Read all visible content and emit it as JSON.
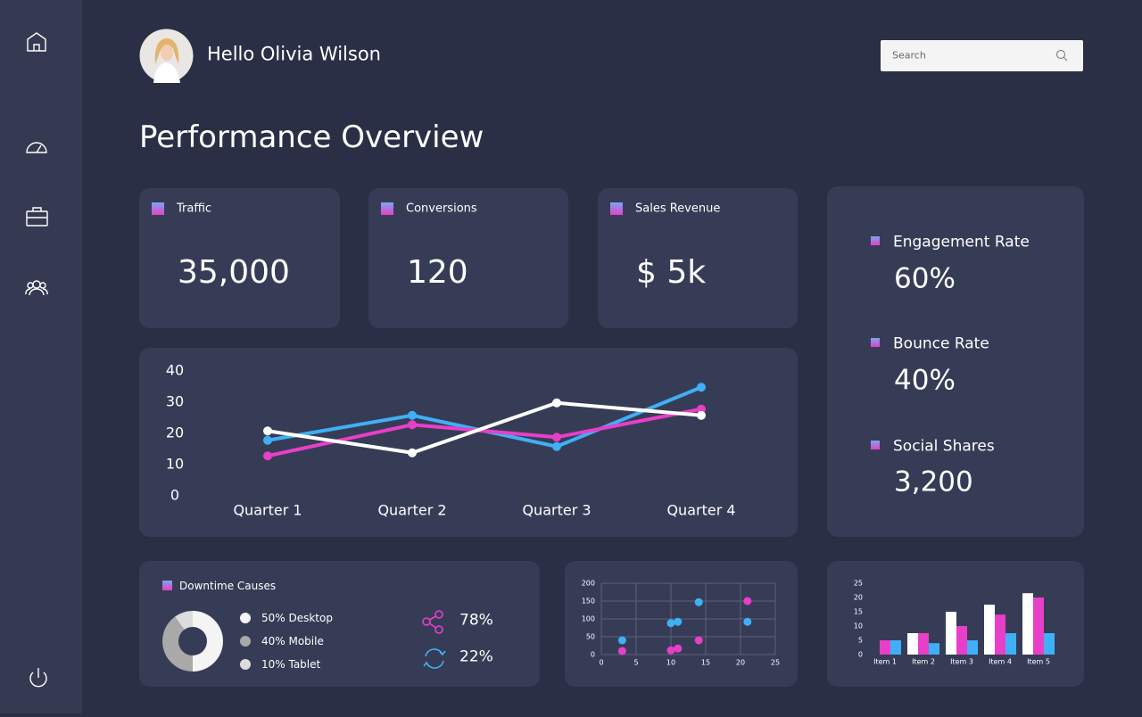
{
  "header": {
    "greeting": "Hello Olivia Wilson",
    "search_placeholder": "Search"
  },
  "title": "Performance Overview",
  "kpis": [
    {
      "label": "Traffic",
      "value": "35,000"
    },
    {
      "label": "Conversions",
      "value": "120"
    },
    {
      "label": "Sales Revenue",
      "value": "$ 5k"
    }
  ],
  "side_stats": [
    {
      "label": "Engagement Rate",
      "value": "60%"
    },
    {
      "label": "Bounce Rate",
      "value": "40%"
    },
    {
      "label": "Social Shares",
      "value": "3,200"
    }
  ],
  "share_stats": [
    "78%",
    "22%"
  ],
  "chart_data": [
    {
      "type": "line",
      "categories": [
        "Quarter 1",
        "Quarter 2",
        "Quarter 3",
        "Quarter 4"
      ],
      "series": [
        {
          "color": "#3fb0f5",
          "values": [
            17.5,
            25.5,
            15.5,
            34.5
          ]
        },
        {
          "color": "#e83fc8",
          "values": [
            12.5,
            22.5,
            18.5,
            27.5
          ]
        },
        {
          "color": "#ffffff",
          "values": [
            20.5,
            13.5,
            29.5,
            25.5
          ]
        }
      ],
      "ylim": [
        0,
        40
      ],
      "yticks": [
        0,
        10,
        20,
        30,
        40
      ],
      "grid": false
    },
    {
      "type": "pie",
      "title": "Downtime Causes",
      "values": [
        50,
        40,
        10
      ],
      "value_labels": [
        "50% Desktop",
        "40% Mobile",
        "10% Tablet"
      ],
      "colors": [
        "#f4f4f4",
        "#a9a9a9",
        "#dcdcdc"
      ]
    },
    {
      "type": "scatter",
      "series": [
        {
          "color": "#3fb0f5",
          "x": [
            3,
            10,
            11,
            14,
            21
          ],
          "values": [
            40,
            88,
            92,
            147,
            92
          ]
        },
        {
          "color": "#e83fc8",
          "x": [
            3,
            10,
            11,
            14,
            21
          ],
          "values": [
            10,
            12,
            17,
            40,
            150
          ]
        }
      ],
      "xlim": [
        0,
        25
      ],
      "xticks": [
        0,
        5,
        10,
        15,
        20,
        25
      ],
      "ylim": [
        0,
        200
      ],
      "yticks": [
        0,
        50,
        100,
        150,
        200
      ],
      "grid": true
    },
    {
      "type": "bar",
      "categories": [
        "Item 1",
        "Item 2",
        "Item 3",
        "Item 4",
        "Item 5"
      ],
      "series": [
        {
          "color": "#ffffff",
          "values": [
            0,
            7.5,
            15,
            17.5,
            21.5
          ]
        },
        {
          "color": "#e83fc8",
          "values": [
            5,
            7.5,
            10,
            14,
            20
          ]
        },
        {
          "color": "#3fb0f5",
          "values": [
            5,
            4,
            5,
            7.5,
            7.5
          ]
        }
      ],
      "ylim": [
        0,
        25
      ],
      "yticks": [
        0,
        5,
        10,
        15,
        20,
        25
      ],
      "grid": false
    }
  ]
}
